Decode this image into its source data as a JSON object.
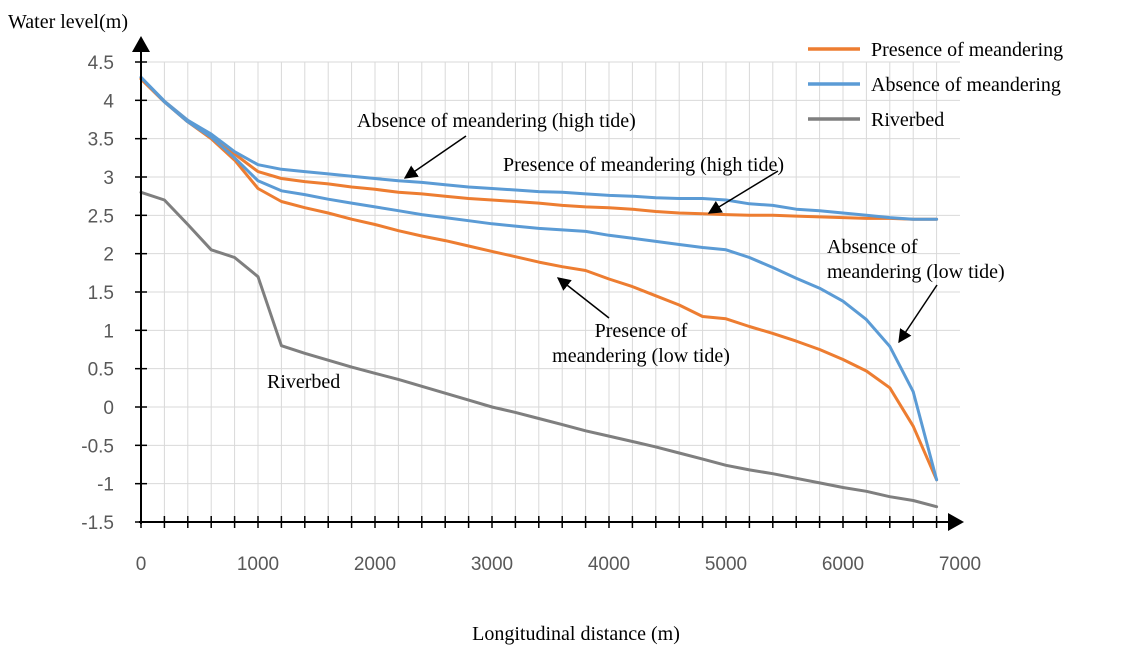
{
  "chart_data": {
    "type": "line",
    "xlabel": "Longitudinal distance (m)",
    "ylabel": "Water level(m)",
    "xlim": [
      0,
      7000
    ],
    "ylim": [
      -1.5,
      4.5
    ],
    "xticks": [
      0,
      1000,
      2000,
      3000,
      4000,
      5000,
      6000,
      7000
    ],
    "xtick_labels": [
      "0",
      "1000",
      "2000",
      "3000",
      "4000",
      "5000",
      "6000",
      "7000"
    ],
    "yticks": [
      -1.5,
      -1,
      -0.5,
      0,
      0.5,
      1,
      1.5,
      2,
      2.5,
      3,
      3.5,
      4,
      4.5
    ],
    "ytick_labels": [
      "-1.5",
      "-1",
      "-0.5",
      "0",
      "0.5",
      "1",
      "1.5",
      "2",
      "2.5",
      "3",
      "3.5",
      "4",
      "4.5"
    ],
    "grid": true,
    "legend_position": "top-right",
    "legend": [
      {
        "label": "Presence of meandering",
        "color": "#ED7D31"
      },
      {
        "label": "Absence of meandering",
        "color": "#5B9BD5"
      },
      {
        "label": "Riverbed",
        "color": "#7F7F7F"
      }
    ],
    "series": [
      {
        "legend": "Presence of meandering",
        "color": "#ED7D31",
        "x": [
          0,
          200,
          400,
          600,
          800,
          1000,
          1200,
          1400,
          1600,
          1800,
          2000,
          2200,
          2400,
          2600,
          2800,
          3000,
          3200,
          3400,
          3600,
          3800,
          4000,
          4200,
          4400,
          4600,
          4800,
          5000,
          5200,
          5400,
          5600,
          5800,
          6000,
          6200,
          6400,
          6600,
          6800
        ],
        "y": [
          4.28,
          3.98,
          3.72,
          3.52,
          3.3,
          3.07,
          2.98,
          2.94,
          2.91,
          2.87,
          2.84,
          2.8,
          2.78,
          2.75,
          2.72,
          2.7,
          2.68,
          2.66,
          2.63,
          2.61,
          2.6,
          2.58,
          2.55,
          2.53,
          2.52,
          2.51,
          2.5,
          2.5,
          2.49,
          2.48,
          2.47,
          2.46,
          2.46,
          2.45,
          2.45
        ]
      },
      {
        "legend": "Absence of meandering",
        "color": "#5B9BD5",
        "x": [
          0,
          200,
          400,
          600,
          800,
          1000,
          1200,
          1400,
          1600,
          1800,
          2000,
          2200,
          2400,
          2600,
          2800,
          3000,
          3200,
          3400,
          3600,
          3800,
          4000,
          4200,
          4400,
          4600,
          4800,
          5000,
          5200,
          5400,
          5600,
          5800,
          6000,
          6200,
          6400,
          6600,
          6800
        ],
        "y": [
          4.3,
          3.99,
          3.74,
          3.56,
          3.33,
          3.16,
          3.1,
          3.07,
          3.04,
          3.01,
          2.98,
          2.95,
          2.93,
          2.9,
          2.87,
          2.85,
          2.83,
          2.81,
          2.8,
          2.78,
          2.76,
          2.75,
          2.73,
          2.72,
          2.72,
          2.7,
          2.65,
          2.63,
          2.58,
          2.56,
          2.53,
          2.5,
          2.47,
          2.45,
          2.45
        ]
      },
      {
        "legend": "Presence of meandering",
        "color": "#ED7D31",
        "x": [
          0,
          200,
          400,
          600,
          800,
          1000,
          1200,
          1400,
          1600,
          1800,
          2000,
          2200,
          2400,
          2600,
          2800,
          3000,
          3200,
          3400,
          3600,
          3800,
          4000,
          4200,
          4400,
          4600,
          4800,
          5000,
          5200,
          5400,
          5600,
          5800,
          6000,
          6200,
          6400,
          6600,
          6800
        ],
        "y": [
          4.28,
          3.98,
          3.72,
          3.5,
          3.22,
          2.85,
          2.68,
          2.6,
          2.53,
          2.45,
          2.38,
          2.3,
          2.23,
          2.17,
          2.1,
          2.03,
          1.96,
          1.89,
          1.83,
          1.78,
          1.67,
          1.57,
          1.45,
          1.33,
          1.18,
          1.15,
          1.05,
          0.96,
          0.86,
          0.75,
          0.62,
          0.47,
          0.25,
          -0.25,
          -0.95
        ]
      },
      {
        "legend": "Absence of meandering",
        "color": "#5B9BD5",
        "x": [
          0,
          200,
          400,
          600,
          800,
          1000,
          1200,
          1400,
          1600,
          1800,
          2000,
          2200,
          2400,
          2600,
          2800,
          3000,
          3200,
          3400,
          3600,
          3800,
          4000,
          4200,
          4400,
          4600,
          4800,
          5000,
          5200,
          5400,
          5600,
          5800,
          6000,
          6200,
          6400,
          6600,
          6800
        ],
        "y": [
          4.3,
          3.98,
          3.72,
          3.52,
          3.25,
          2.95,
          2.82,
          2.77,
          2.71,
          2.66,
          2.61,
          2.56,
          2.51,
          2.47,
          2.43,
          2.39,
          2.36,
          2.33,
          2.31,
          2.29,
          2.24,
          2.2,
          2.16,
          2.12,
          2.08,
          2.05,
          1.95,
          1.82,
          1.68,
          1.55,
          1.38,
          1.14,
          0.79,
          0.2,
          -0.95
        ]
      },
      {
        "legend": "Riverbed",
        "color": "#7F7F7F",
        "x": [
          0,
          200,
          400,
          600,
          800,
          1000,
          1200,
          1400,
          1600,
          1800,
          2000,
          2200,
          2400,
          2600,
          2800,
          3000,
          3200,
          3400,
          3600,
          3800,
          4000,
          4200,
          4400,
          4600,
          4800,
          5000,
          5200,
          5400,
          5600,
          5800,
          6000,
          6200,
          6400,
          6600,
          6800
        ],
        "y": [
          2.8,
          2.7,
          2.38,
          2.05,
          1.95,
          1.7,
          0.8,
          0.7,
          0.61,
          0.52,
          0.44,
          0.36,
          0.27,
          0.18,
          0.09,
          0.0,
          -0.07,
          -0.15,
          -0.23,
          -0.31,
          -0.38,
          -0.45,
          -0.52,
          -0.6,
          -0.68,
          -0.76,
          -0.82,
          -0.87,
          -0.93,
          -0.99,
          -1.05,
          -1.1,
          -1.17,
          -1.22,
          -1.3
        ]
      }
    ],
    "annotations": [
      {
        "id": "ann-absence-high",
        "lines": [
          "Absence of meandering (high tide)"
        ]
      },
      {
        "id": "ann-presence-high",
        "lines": [
          "Presence of meandering (high tide)"
        ]
      },
      {
        "id": "ann-absence-low",
        "lines": [
          "Absence of",
          "meandering (low tide)"
        ]
      },
      {
        "id": "ann-presence-low",
        "lines": [
          "Presence of",
          "meandering (low tide)"
        ]
      },
      {
        "id": "ann-riverbed",
        "lines": [
          "Riverbed"
        ]
      }
    ]
  }
}
